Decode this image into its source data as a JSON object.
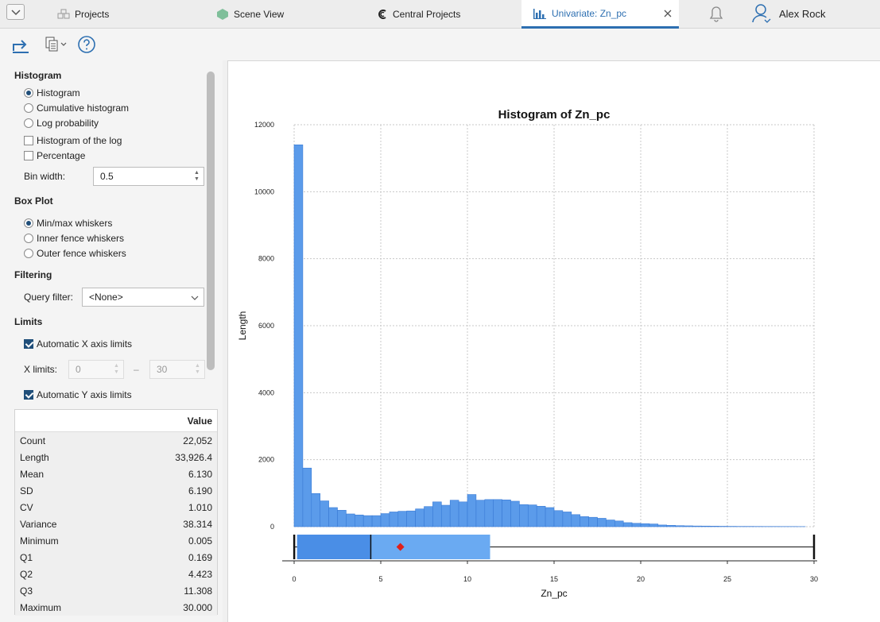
{
  "tabs": [
    {
      "label": "Projects",
      "icon": "projects-icon"
    },
    {
      "label": "Scene View",
      "icon": "scene-view-icon"
    },
    {
      "label": "Central Projects",
      "icon": "central-projects-icon"
    },
    {
      "label": "Univariate: Zn_pc",
      "icon": "univariate-icon",
      "active": true
    }
  ],
  "user": {
    "name": "Alex Rock"
  },
  "histogram_section": {
    "title": "Histogram",
    "options": [
      "Histogram",
      "Cumulative histogram",
      "Log probability"
    ],
    "selected": "Histogram",
    "checks": [
      {
        "label": "Histogram of the log",
        "checked": false
      },
      {
        "label": "Percentage",
        "checked": false
      }
    ],
    "bin_width_label": "Bin width:",
    "bin_width": "0.5"
  },
  "boxplot_section": {
    "title": "Box Plot",
    "options": [
      "Min/max whiskers",
      "Inner fence whiskers",
      "Outer fence whiskers"
    ],
    "selected": "Min/max whiskers"
  },
  "filtering_section": {
    "title": "Filtering",
    "query_label": "Query filter:",
    "query_value": "<None>"
  },
  "limits_section": {
    "title": "Limits",
    "auto_x_label": "Automatic X axis limits",
    "auto_x": true,
    "x_limits_label": "X limits:",
    "x_min": "0",
    "x_dash": "–",
    "x_max": "30",
    "auto_y_label": "Automatic Y axis limits",
    "auto_y": true
  },
  "stats": {
    "header": "Value",
    "rows": [
      {
        "name": "Count",
        "value": "22,052"
      },
      {
        "name": "Length",
        "value": "33,926.4"
      },
      {
        "name": "Mean",
        "value": "6.130"
      },
      {
        "name": "SD",
        "value": "6.190"
      },
      {
        "name": "CV",
        "value": "1.010"
      },
      {
        "name": "Variance",
        "value": "38.314"
      },
      {
        "name": "Minimum",
        "value": "0.005"
      },
      {
        "name": "Q1",
        "value": "0.169"
      },
      {
        "name": "Q2",
        "value": "4.423"
      },
      {
        "name": "Q3",
        "value": "11.308"
      },
      {
        "name": "Maximum",
        "value": "30.000"
      }
    ]
  },
  "colors": {
    "bar": "#5b9bea",
    "bar_edge": "#3a7bd5",
    "accent": "#1f4e79",
    "mean_marker": "#e0201a"
  },
  "chart_data": {
    "type": "bar",
    "title": "Histogram of Zn_pc",
    "xlabel": "Zn_pc",
    "ylabel": "Length",
    "xlim": [
      0,
      30
    ],
    "ylim": [
      0,
      12000
    ],
    "xticks": [
      0,
      5,
      10,
      15,
      20,
      25,
      30
    ],
    "yticks": [
      0,
      2000,
      4000,
      6000,
      8000,
      10000,
      12000
    ],
    "grid": true,
    "bin_width": 0.5,
    "bin_start": 0,
    "values": [
      11400,
      1750,
      990,
      770,
      570,
      490,
      380,
      350,
      330,
      330,
      390,
      440,
      460,
      470,
      530,
      600,
      740,
      640,
      790,
      740,
      960,
      790,
      810,
      810,
      800,
      760,
      660,
      650,
      610,
      570,
      480,
      440,
      360,
      300,
      280,
      250,
      200,
      170,
      120,
      100,
      90,
      80,
      50,
      40,
      30,
      25,
      20,
      18,
      15,
      12,
      10,
      8,
      8,
      7,
      6,
      6,
      5,
      5,
      3
    ],
    "boxplot": {
      "min": 0.005,
      "q1": 0.169,
      "median": 4.423,
      "q3": 11.308,
      "max": 30.0,
      "mean": 6.13
    }
  }
}
